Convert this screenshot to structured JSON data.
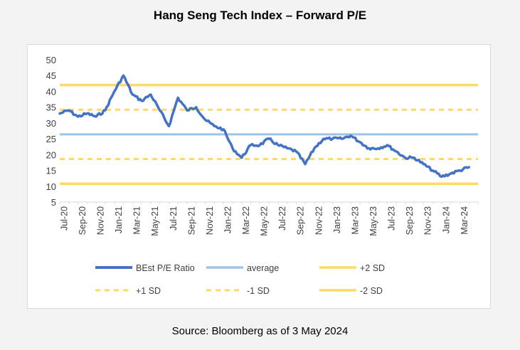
{
  "title": "Hang Seng Tech Index – Forward P/E",
  "source": "Source: Bloomberg as of 3 May 2024",
  "colors": {
    "series": "#4472c4",
    "average": "#9dc3e6",
    "bands": "#ffd966"
  },
  "chart_data": {
    "type": "line",
    "title": "",
    "xlabel": "",
    "ylabel": "",
    "ylim": [
      5,
      50
    ],
    "yticks": [
      5,
      10,
      15,
      20,
      25,
      30,
      35,
      40,
      45,
      50
    ],
    "xlim": [
      "2020-07",
      "2024-04"
    ],
    "xtick_labels": [
      "Jul-20",
      "Sep-20",
      "Nov-20",
      "Jan-21",
      "Mar-21",
      "May-21",
      "Jul-21",
      "Sep-21",
      "Nov-21",
      "Jan-22",
      "Mar-22",
      "May-22",
      "Jul-22",
      "Sep-22",
      "Nov-22",
      "Jan-23",
      "Mar-23",
      "May-23",
      "Jul-23",
      "Sep-23",
      "Nov-23",
      "Jan-24",
      "Mar-24"
    ],
    "grid": false,
    "legend_position": "bottom",
    "series": [
      {
        "name": "BEst P/E Ratio",
        "x": [
          "2020-07",
          "2020-08",
          "2020-09",
          "2020-10",
          "2020-11",
          "2020-12",
          "2021-01",
          "2021-02",
          "2021-03",
          "2021-04",
          "2021-05",
          "2021-06",
          "2021-07",
          "2021-08",
          "2021-09",
          "2021-10",
          "2021-11",
          "2021-12",
          "2022-01",
          "2022-02",
          "2022-03",
          "2022-04",
          "2022-05",
          "2022-06",
          "2022-07",
          "2022-08",
          "2022-09",
          "2022-10",
          "2022-11",
          "2022-12",
          "2023-01",
          "2023-02",
          "2023-03",
          "2023-04",
          "2023-05",
          "2023-06",
          "2023-07",
          "2023-08",
          "2023-09",
          "2023-10",
          "2023-11",
          "2023-12",
          "2024-01",
          "2024-02",
          "2024-03",
          "2024-04"
        ],
        "values": [
          33,
          34,
          32,
          33,
          32,
          34,
          40,
          45,
          39,
          37,
          39,
          34,
          29,
          38,
          34,
          35,
          31,
          29,
          28,
          22,
          19,
          23,
          23,
          25,
          23,
          22,
          21,
          17,
          22,
          25,
          25,
          25,
          26,
          24,
          22,
          22,
          23,
          21,
          19,
          19,
          17,
          15,
          13,
          14,
          15,
          16
        ]
      },
      {
        "name": "average",
        "values": [
          26.4
        ]
      },
      {
        "name": "+2 SD",
        "values": [
          42.0
        ]
      },
      {
        "name": "+1 SD",
        "values": [
          34.2
        ]
      },
      {
        "name": "-1 SD",
        "values": [
          18.6
        ]
      },
      {
        "name": "-2 SD",
        "values": [
          10.8
        ]
      }
    ]
  }
}
